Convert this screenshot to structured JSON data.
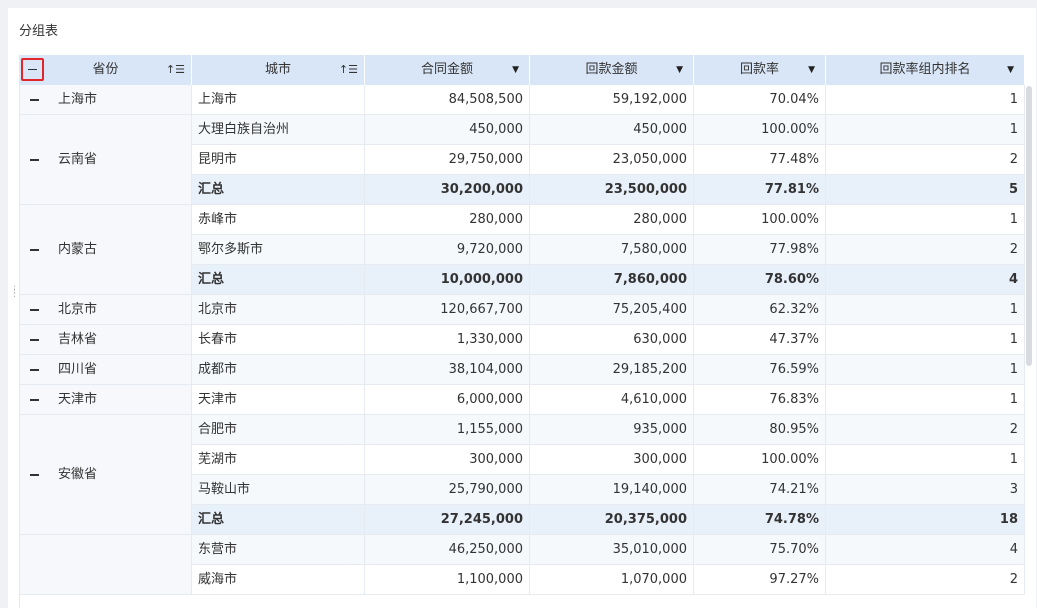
{
  "panel_title": "分组表",
  "headers": {
    "province": "省份",
    "city": "城市",
    "contract": "合同金额",
    "payment": "回款金额",
    "rate": "回款率",
    "rank": "回款率组内排名"
  },
  "icons": {
    "sort": "sort-icon",
    "caret": "caret-down-icon",
    "collapse": "minus-icon"
  },
  "groups": [
    {
      "province": "上海市",
      "rows": [
        {
          "city": "上海市",
          "contract": "84,508,500",
          "payment": "59,192,000",
          "rate": "70.04%",
          "rank": "1"
        }
      ]
    },
    {
      "province": "云南省",
      "rows": [
        {
          "city": "大理白族自治州",
          "contract": "450,000",
          "payment": "450,000",
          "rate": "100.00%",
          "rank": "1"
        },
        {
          "city": "昆明市",
          "contract": "29,750,000",
          "payment": "23,050,000",
          "rate": "77.48%",
          "rank": "2"
        },
        {
          "city": "汇总",
          "contract": "30,200,000",
          "payment": "23,500,000",
          "rate": "77.81%",
          "rank": "5",
          "summary": true
        }
      ]
    },
    {
      "province": "内蒙古",
      "rows": [
        {
          "city": "赤峰市",
          "contract": "280,000",
          "payment": "280,000",
          "rate": "100.00%",
          "rank": "1"
        },
        {
          "city": "鄂尔多斯市",
          "contract": "9,720,000",
          "payment": "7,580,000",
          "rate": "77.98%",
          "rank": "2"
        },
        {
          "city": "汇总",
          "contract": "10,000,000",
          "payment": "7,860,000",
          "rate": "78.60%",
          "rank": "4",
          "summary": true
        }
      ]
    },
    {
      "province": "北京市",
      "rows": [
        {
          "city": "北京市",
          "contract": "120,667,700",
          "payment": "75,205,400",
          "rate": "62.32%",
          "rank": "1"
        }
      ]
    },
    {
      "province": "吉林省",
      "rows": [
        {
          "city": "长春市",
          "contract": "1,330,000",
          "payment": "630,000",
          "rate": "47.37%",
          "rank": "1"
        }
      ]
    },
    {
      "province": "四川省",
      "rows": [
        {
          "city": "成都市",
          "contract": "38,104,000",
          "payment": "29,185,200",
          "rate": "76.59%",
          "rank": "1"
        }
      ]
    },
    {
      "province": "天津市",
      "rows": [
        {
          "city": "天津市",
          "contract": "6,000,000",
          "payment": "4,610,000",
          "rate": "76.83%",
          "rank": "1"
        }
      ]
    },
    {
      "province": "安徽省",
      "rows": [
        {
          "city": "合肥市",
          "contract": "1,155,000",
          "payment": "935,000",
          "rate": "80.95%",
          "rank": "2"
        },
        {
          "city": "芜湖市",
          "contract": "300,000",
          "payment": "300,000",
          "rate": "100.00%",
          "rank": "1"
        },
        {
          "city": "马鞍山市",
          "contract": "25,790,000",
          "payment": "19,140,000",
          "rate": "74.21%",
          "rank": "3"
        },
        {
          "city": "汇总",
          "contract": "27,245,000",
          "payment": "20,375,000",
          "rate": "74.78%",
          "rank": "18",
          "summary": true
        }
      ]
    },
    {
      "province": "",
      "rows": [
        {
          "city": "东营市",
          "contract": "46,250,000",
          "payment": "35,010,000",
          "rate": "75.70%",
          "rank": "4"
        },
        {
          "city": "威海市",
          "contract": "1,100,000",
          "payment": "1,070,000",
          "rate": "97.27%",
          "rank": "2"
        }
      ]
    }
  ]
}
